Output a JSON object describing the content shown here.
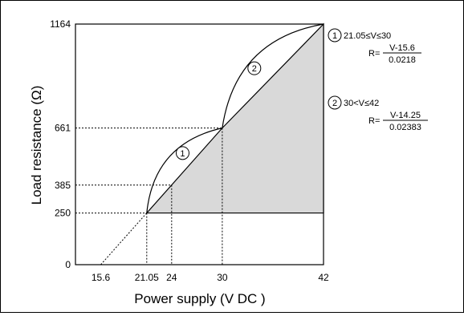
{
  "chart_data": {
    "type": "area",
    "xlabel": "Power supply (V DC )",
    "ylabel": "Load resistance (Ω)",
    "xlim": [
      12.6,
      42
    ],
    "ylim": [
      0,
      1164
    ],
    "x_ticks": [
      {
        "value": 15.6,
        "label": "15.6"
      },
      {
        "value": 21.05,
        "label": "21.05"
      },
      {
        "value": 24,
        "label": "24"
      },
      {
        "value": 30,
        "label": "30"
      },
      {
        "value": 42,
        "label": "42"
      }
    ],
    "y_ticks": [
      {
        "value": 0,
        "label": "0"
      },
      {
        "value": 250,
        "label": "250"
      },
      {
        "value": 385,
        "label": "385"
      },
      {
        "value": 661,
        "label": "661"
      },
      {
        "value": 1164,
        "label": "1164"
      }
    ],
    "operating_region": {
      "fill": "#d9d9d9",
      "points": [
        [
          21.05,
          250
        ],
        [
          42,
          250
        ],
        [
          42,
          1164
        ],
        [
          30,
          661
        ]
      ]
    },
    "extension_line": [
      [
        15.6,
        0
      ],
      [
        21.05,
        250
      ]
    ],
    "reference_lines": [
      {
        "x": 21.05,
        "y": 250
      },
      {
        "x": 24,
        "y": 385
      },
      {
        "x": 30,
        "y": 661
      },
      {
        "x": 42,
        "y": 1164
      }
    ],
    "curves": [
      {
        "id": "1",
        "from": [
          21.05,
          250
        ],
        "to": [
          30,
          661
        ],
        "label_at": [
          25.3,
          540
        ]
      },
      {
        "id": "2",
        "from": [
          30,
          661
        ],
        "to": [
          42,
          1164
        ],
        "label_at": [
          33.8,
          950
        ]
      }
    ],
    "annotations": [
      {
        "number": "1",
        "range": "21.05≤V≤30",
        "formula_prefix": "R=",
        "numerator": "V-15.6",
        "denominator": "0.0218"
      },
      {
        "number": "2",
        "range": "30<V≤42",
        "formula_prefix": "R=",
        "numerator": "V-14.25",
        "denominator": "0.02383"
      }
    ]
  }
}
